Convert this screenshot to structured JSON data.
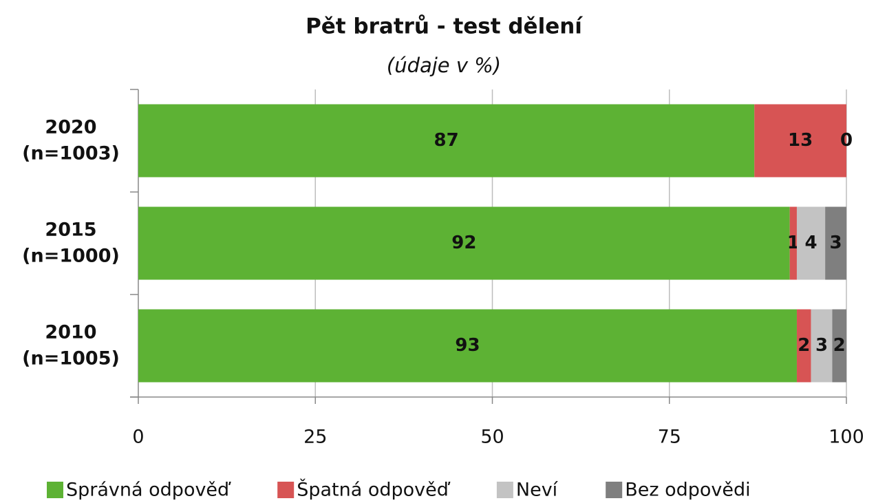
{
  "chart_data": {
    "type": "stacked-barh",
    "title": "Pět bratrů - test dělení",
    "subtitle": "(údaje v %)",
    "categories": [
      "2020\n(n=1003)",
      "2015\n(n=1000)",
      "2010\n(n=1005)"
    ],
    "series": [
      {
        "name": "Správná odpověď",
        "color": "#5db234",
        "values": [
          87,
          92,
          93
        ]
      },
      {
        "name": "Špatná odpověď",
        "color": "#d75454",
        "values": [
          13,
          1,
          2
        ]
      },
      {
        "name": "Neví",
        "color": "#c3c3c3",
        "values": [
          0,
          4,
          3
        ]
      },
      {
        "name": "Bez odpovědi",
        "color": "#7f7f7f",
        "values": [
          null,
          3,
          2
        ]
      }
    ],
    "xlim": [
      0,
      100
    ],
    "xticks": [
      0,
      25,
      50,
      75,
      100
    ],
    "grid": true,
    "legend": "bottom"
  }
}
